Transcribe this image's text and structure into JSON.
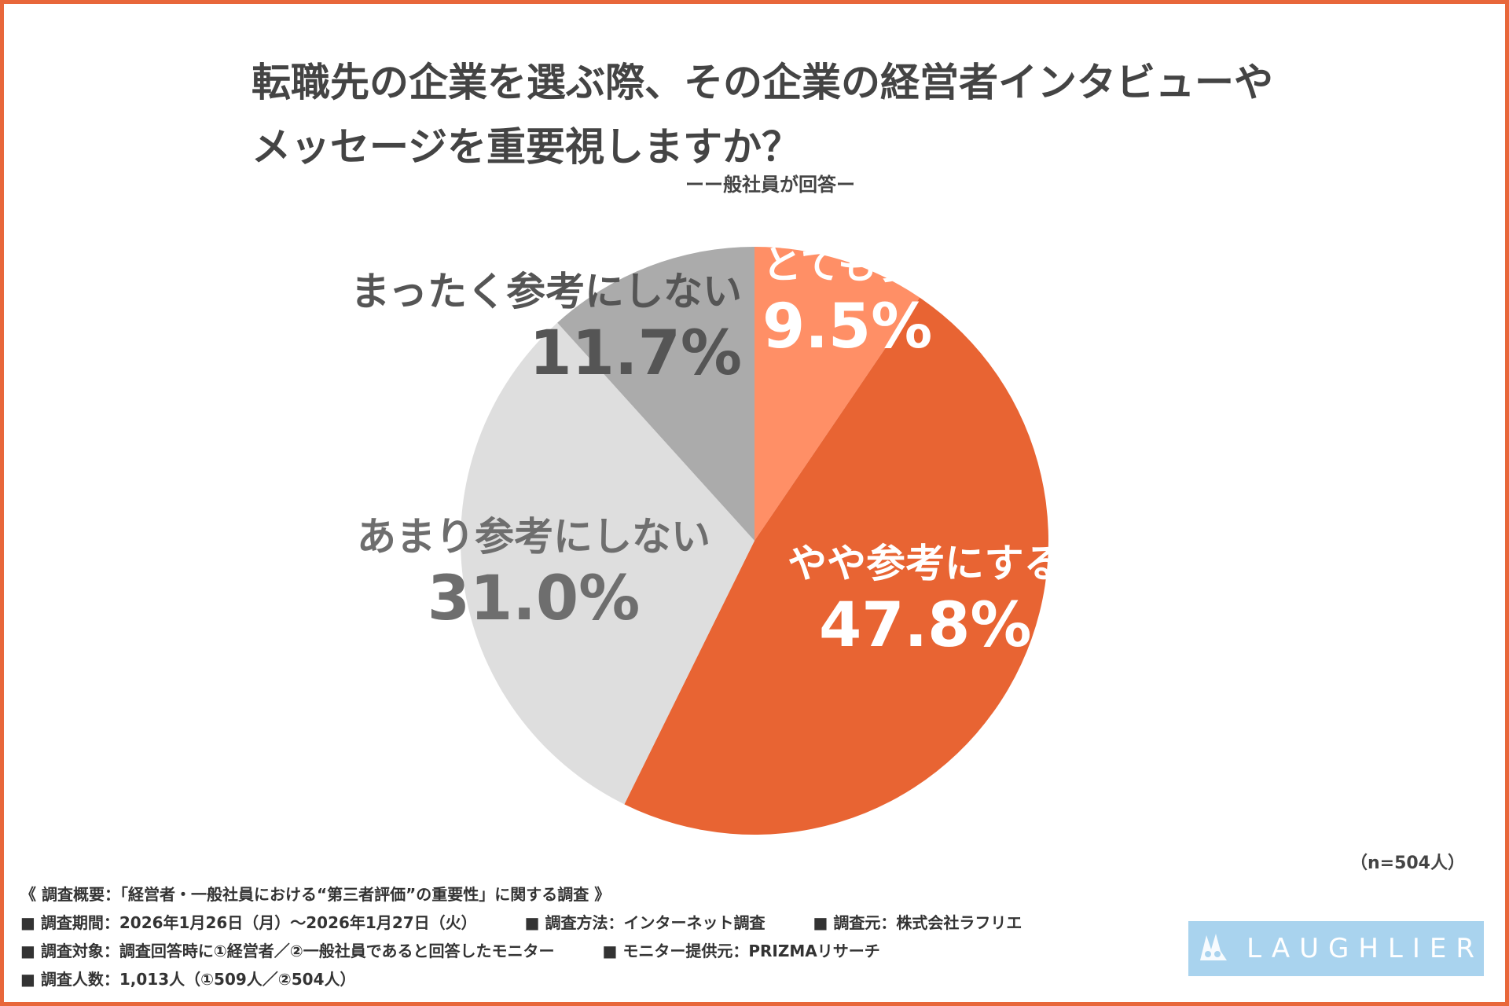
{
  "title_line1": "転職先の企業を選ぶ際、その企業の経営者インタビューや",
  "title_line2": "メッセージを重要視しますか？",
  "subtitle": "ーー般社員が回答ー",
  "sample_note": "（n=504人）",
  "colors": {
    "frame": "#e8673a",
    "very": "#ff8f66",
    "somewhat": "#e86433",
    "not_much": "#dedede",
    "not_at_all": "#ababab"
  },
  "chart_data": {
    "type": "pie",
    "title": "転職先の企業を選ぶ際、その企業の経営者インタビューやメッセージを重要視しますか？",
    "subtitle": "ーー般社員が回答ー",
    "start": "12 o'clock, clockwise",
    "slices": [
      {
        "label": "とても参考にする",
        "value": 9.5,
        "display": "9.5%",
        "color": "#ff8f66",
        "text_color": "#ffffff"
      },
      {
        "label": "やや参考にする",
        "value": 47.8,
        "display": "47.8%",
        "color": "#e86433",
        "text_color": "#ffffff"
      },
      {
        "label": "あまり参考にしない",
        "value": 31.0,
        "display": "31.0%",
        "color": "#dedede",
        "text_color": "#6e6e6e"
      },
      {
        "label": "まったく参考にしない",
        "value": 11.7,
        "display": "11.7%",
        "color": "#ababab",
        "text_color": "#555555"
      }
    ]
  },
  "footnotes": {
    "overview": "《 調査概要：「経営者・一般社員における“第三者評価”の重要性」に関する調査 》",
    "period": "■ 調査期間：2026年1月26日（月）〜2026年1月27日（火）",
    "method": "■ 調査方法：インターネット調査",
    "source": "■ 調査元：株式会社ラフリエ",
    "target": "■ 調査対象：調査回答時に①経営者／②一般社員であると回答したモニター",
    "monitor": "■ モニター提供元：PRIZMAリサーチ",
    "count": "■ 調査人数：1,013人（①509人／②504人）"
  },
  "logo": {
    "text": "LAUGHLIER",
    "icon": "rabbit-logo-icon"
  }
}
